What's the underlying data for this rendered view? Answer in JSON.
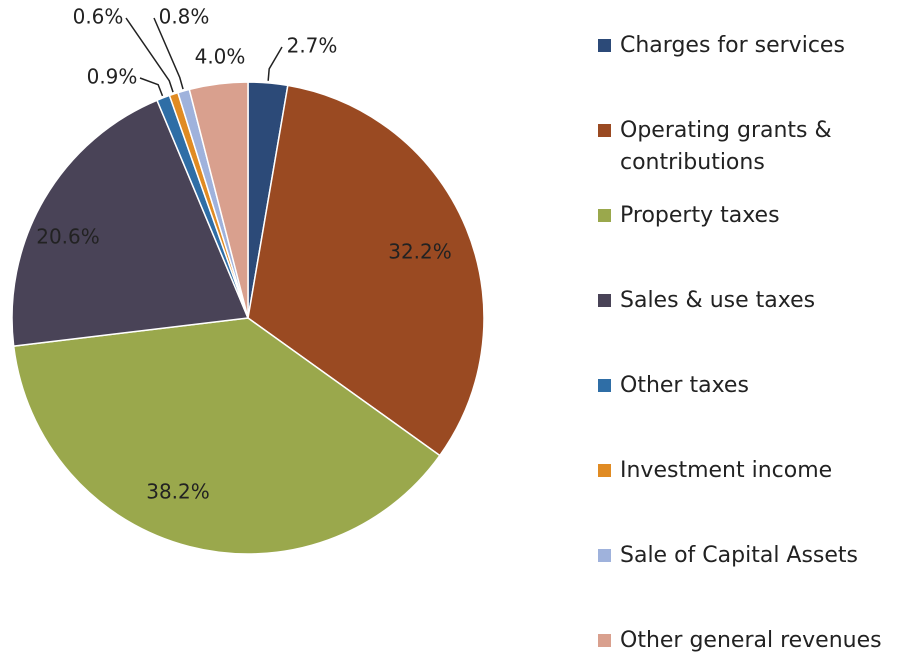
{
  "chart_data": {
    "type": "pie",
    "categories": [
      "Charges for services",
      "Operating grants & contributions",
      "Property taxes",
      "Sales & use taxes",
      "Other taxes",
      "Investment income",
      "Sale of Capital Assets",
      "Other general revenues"
    ],
    "values": [
      2.7,
      32.2,
      38.2,
      20.6,
      0.9,
      0.6,
      0.8,
      4.0
    ],
    "value_labels": [
      "2.7%",
      "32.2%",
      "38.2%",
      "20.6%",
      "0.9%",
      "0.6%",
      "0.8%",
      "4.0%"
    ],
    "colors": [
      "#2c4a78",
      "#9a4a22",
      "#9aa84c",
      "#494357",
      "#2f6ea6",
      "#e08b23",
      "#9fb2dc",
      "#d9a08e"
    ]
  }
}
